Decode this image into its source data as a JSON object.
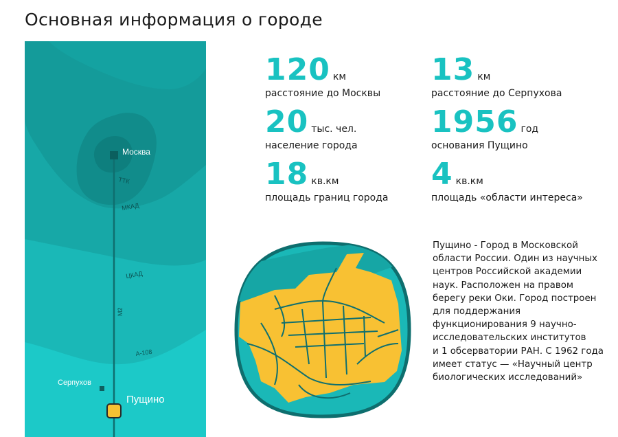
{
  "page": {
    "title": "Основная информация о городе"
  },
  "map": {
    "labels": {
      "moscow": "Москва",
      "ttk": "ТТК",
      "mkad": "МКАД",
      "ckad": "ЦКАД",
      "m2": "М2",
      "a108": "А-108",
      "serpukhov": "Серпухов",
      "pushchino": "Пущино"
    },
    "colors": {
      "outer": "#1cc9c8",
      "band1": "#1ab8b7",
      "band2": "#17a8a7",
      "band3": "#149b9a",
      "ring_mkad": "#118c8b",
      "ring_ttk": "#0e7f7e",
      "center": "#0b6e6d",
      "road": "#0f6f6f",
      "city_fill": "#f8c133",
      "city_bg": "#1ab8b7",
      "river": "#16a6a5"
    }
  },
  "stats": [
    {
      "value": "120",
      "unit": "км",
      "desc": "расстояние до Москвы"
    },
    {
      "value": "13",
      "unit": "км",
      "desc": "расстояние до Серпухова"
    },
    {
      "value": "20",
      "unit": "тыс. чел.",
      "desc": "население города"
    },
    {
      "value": "1956",
      "unit": "год",
      "desc": "основания Пущино"
    },
    {
      "value": "18",
      "unit": "кв.км",
      "desc": "площадь границ города"
    },
    {
      "value": "4",
      "unit": "кв.км",
      "desc": "площадь «области интереса»"
    }
  ],
  "about": {
    "lines": [
      "Пущино - Город в Московской",
      "области России. Один из научных",
      "центров Российской академии",
      "наук. Расположен на правом",
      "берегу реки Оки. Город построен",
      "для поддержания",
      "функционирования 9 научно-",
      "исследовательских институтов",
      "и 1 обсерватории РАН. С 1962 года",
      "имеет статус — «Научный центр",
      "биологических исследований»"
    ]
  }
}
